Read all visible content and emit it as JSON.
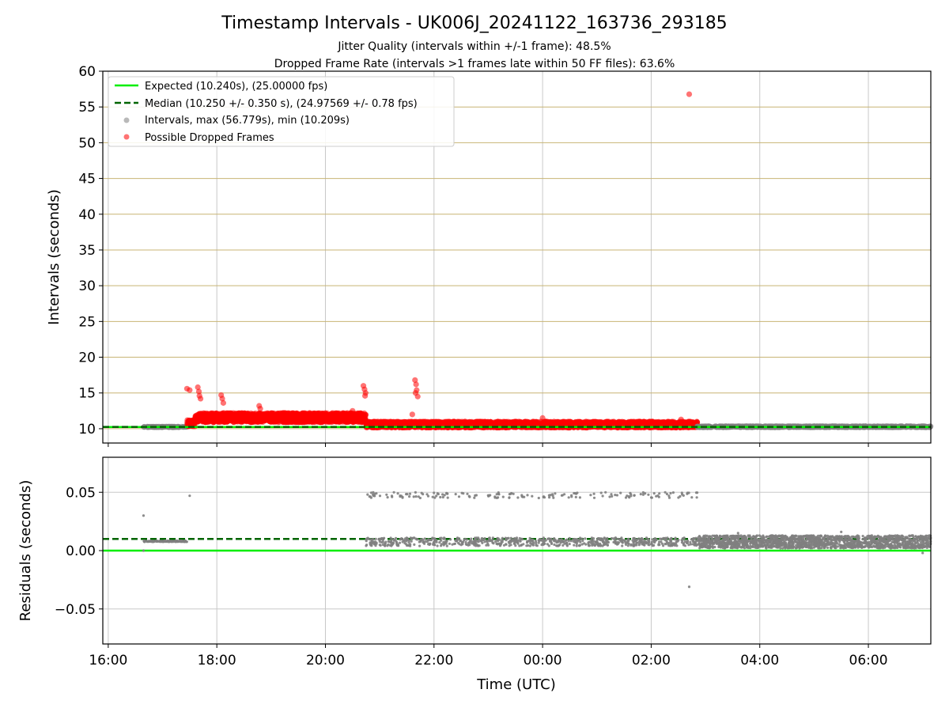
{
  "chart_data": {
    "type": "scatter",
    "title": "Timestamp Intervals - UK006J_20241122_163736_293185",
    "subtitle_lines": [
      "Jitter Quality (intervals within +/-1 frame): 48.5%",
      "Dropped Frame Rate (intervals >1 frames late within 50 FF files): 63.6%"
    ],
    "xlabel": "Time (UTC)",
    "x_ticks": [
      "16:00",
      "18:00",
      "20:00",
      "22:00",
      "00:00",
      "02:00",
      "04:00",
      "06:00"
    ],
    "x_tick_hours": [
      0,
      2,
      4,
      6,
      8,
      10,
      12,
      14
    ],
    "x_range_hours_from_1600": [
      -0.1,
      15.15
    ],
    "colors": {
      "expected": "#00ee00",
      "median": "#006400",
      "intervals": "#808080",
      "dropped": "#ff0000",
      "grid_upper": "#c8b474",
      "grid_lower": "#c8c8c8"
    },
    "panels": {
      "intervals": {
        "ylabel": "Intervals (seconds)",
        "ylim": [
          8,
          60
        ],
        "y_ticks": [
          "10",
          "15",
          "20",
          "25",
          "30",
          "35",
          "40",
          "45",
          "50",
          "55",
          "60"
        ],
        "y_tick_values": [
          10,
          15,
          20,
          25,
          30,
          35,
          40,
          45,
          50,
          55,
          60
        ],
        "expected": 10.24,
        "median": 10.25,
        "legend": [
          {
            "label": "Expected (10.240s), (25.00000 fps)",
            "style": "solid-line",
            "color": "#00ee00"
          },
          {
            "label": "Median (10.250 +/- 0.350 s), (24.97569 +/- 0.78 fps)",
            "style": "dashed-line",
            "color": "#006400"
          },
          {
            "label": "Intervals, max (56.779s), min (10.209s)",
            "style": "marker",
            "color": "#808080"
          },
          {
            "label": "Possible Dropped Frames",
            "style": "marker",
            "color": "#ff0000"
          }
        ],
        "legend_position": "upper-left",
        "bands": [
          {
            "name": "normal-early",
            "x": [
              0.65,
              1.45
            ],
            "y": [
              10.2,
              10.3
            ],
            "color": "#808080",
            "density": 90
          },
          {
            "name": "dropped-early",
            "x": [
              1.45,
              1.6
            ],
            "y": [
              10.3,
              11.2
            ],
            "color": "#ff0000",
            "density": 60
          },
          {
            "name": "dropped-elevated",
            "x": [
              1.6,
              4.75
            ],
            "y": [
              10.9,
              12.2
            ],
            "color": "#ff0000",
            "density": 1700
          },
          {
            "name": "dropped-main",
            "x": [
              4.75,
              10.85
            ],
            "y": [
              10.15,
              11.0
            ],
            "color": "#ff0000",
            "density": 3200
          },
          {
            "name": "normal-late",
            "x": [
              10.85,
              15.15
            ],
            "y": [
              10.2,
              10.35
            ],
            "color": "#808080",
            "density": 900
          }
        ],
        "points": [
          {
            "x": 10.7,
            "y": 56.78,
            "color": "#ff0000"
          },
          {
            "x": 1.45,
            "y": 15.6,
            "color": "#ff0000"
          },
          {
            "x": 1.5,
            "y": 15.4,
            "color": "#ff0000"
          },
          {
            "x": 1.65,
            "y": 15.8,
            "color": "#ff0000"
          },
          {
            "x": 1.67,
            "y": 15.2,
            "color": "#ff0000"
          },
          {
            "x": 1.68,
            "y": 14.6,
            "color": "#ff0000"
          },
          {
            "x": 1.7,
            "y": 14.2,
            "color": "#ff0000"
          },
          {
            "x": 2.08,
            "y": 14.7,
            "color": "#ff0000"
          },
          {
            "x": 2.1,
            "y": 14.2,
            "color": "#ff0000"
          },
          {
            "x": 2.12,
            "y": 13.6,
            "color": "#ff0000"
          },
          {
            "x": 2.78,
            "y": 13.2,
            "color": "#ff0000"
          },
          {
            "x": 2.8,
            "y": 12.8,
            "color": "#ff0000"
          },
          {
            "x": 4.7,
            "y": 16.0,
            "color": "#ff0000"
          },
          {
            "x": 4.72,
            "y": 15.5,
            "color": "#ff0000"
          },
          {
            "x": 4.74,
            "y": 15.0,
            "color": "#ff0000"
          },
          {
            "x": 4.73,
            "y": 14.6,
            "color": "#ff0000"
          },
          {
            "x": 4.5,
            "y": 12.5,
            "color": "#ff0000"
          },
          {
            "x": 5.65,
            "y": 16.8,
            "color": "#ff0000"
          },
          {
            "x": 5.67,
            "y": 16.2,
            "color": "#ff0000"
          },
          {
            "x": 5.68,
            "y": 15.4,
            "color": "#ff0000"
          },
          {
            "x": 5.66,
            "y": 15.0,
            "color": "#ff0000"
          },
          {
            "x": 5.7,
            "y": 14.5,
            "color": "#ff0000"
          },
          {
            "x": 5.6,
            "y": 12.0,
            "color": "#ff0000"
          },
          {
            "x": 8.0,
            "y": 11.5,
            "color": "#ff0000"
          },
          {
            "x": 10.55,
            "y": 11.3,
            "color": "#ff0000"
          }
        ]
      },
      "residuals": {
        "ylabel": "Residuals (seconds)",
        "ylim": [
          -0.08,
          0.08
        ],
        "y_ticks": [
          "−0.05",
          "0.00",
          "0.05"
        ],
        "y_tick_values": [
          -0.05,
          0.0,
          0.05
        ],
        "expected": 0.0,
        "median": 0.01,
        "bands": [
          {
            "name": "early-flat",
            "x": [
              0.65,
              1.45
            ],
            "y": [
              0.0075,
              0.0085
            ],
            "color": "#808080",
            "density": 120
          },
          {
            "name": "mid-baseline",
            "x": [
              4.75,
              10.85
            ],
            "y": [
              0.004,
              0.011
            ],
            "color": "#808080",
            "density": 700
          },
          {
            "name": "mid-upper",
            "x": [
              4.75,
              10.85
            ],
            "y": [
              0.045,
              0.05
            ],
            "color": "#808080",
            "density": 160
          },
          {
            "name": "late-baseline",
            "x": [
              10.85,
              15.15
            ],
            "y": [
              0.002,
              0.013
            ],
            "color": "#808080",
            "density": 1700
          }
        ],
        "points": [
          {
            "x": 0.65,
            "y": 0.03,
            "color": "#808080"
          },
          {
            "x": 0.65,
            "y": 0.0,
            "color": "#808080"
          },
          {
            "x": 1.5,
            "y": 0.047,
            "color": "#808080"
          },
          {
            "x": 10.7,
            "y": -0.031,
            "color": "#808080"
          },
          {
            "x": 11.6,
            "y": 0.015,
            "color": "#808080"
          },
          {
            "x": 13.5,
            "y": 0.016,
            "color": "#808080"
          },
          {
            "x": 15.0,
            "y": -0.002,
            "color": "#808080"
          }
        ]
      }
    }
  }
}
